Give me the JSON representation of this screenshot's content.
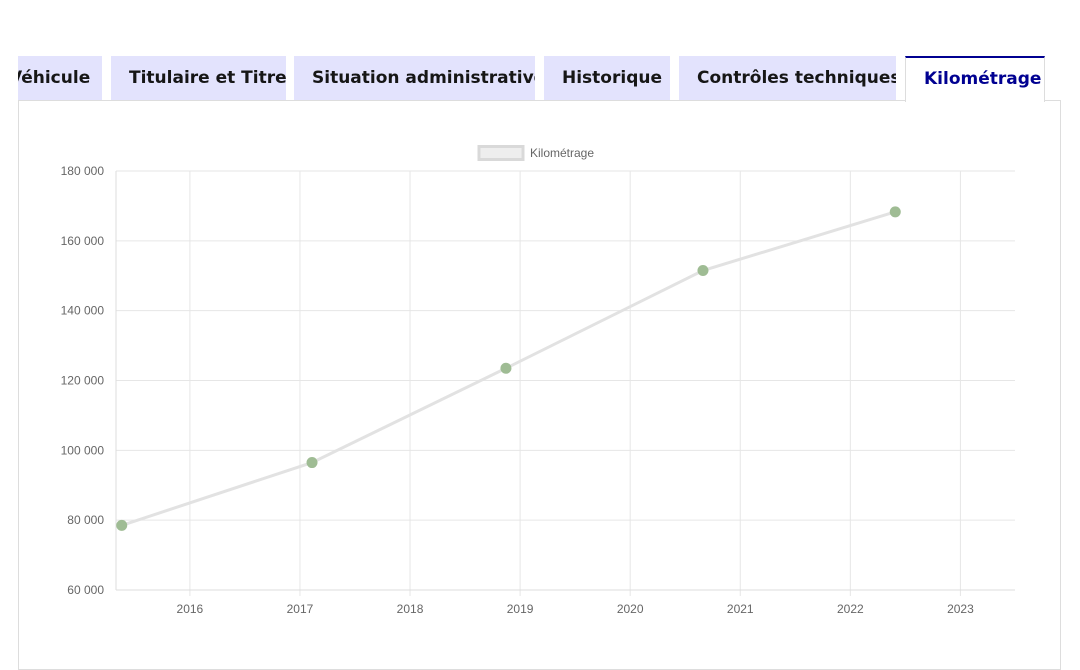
{
  "tabs": [
    {
      "label": "Véhicule",
      "active": false
    },
    {
      "label": "Titulaire et Titre",
      "active": false
    },
    {
      "label": "Situation administrative",
      "active": false
    },
    {
      "label": "Historique",
      "active": false
    },
    {
      "label": "Contrôles techniques",
      "active": false
    },
    {
      "label": "Kilométrage",
      "active": true
    }
  ],
  "colors": {
    "tab_background": "#e3e3fd",
    "active_tab_accent": "#000091",
    "line": "#e2e2e2",
    "point": "#9fbc94"
  },
  "chart_data": {
    "type": "line",
    "title": "",
    "xlabel": "",
    "ylabel": "",
    "legend": {
      "position": "top",
      "label": "Kilométrage"
    },
    "grid": true,
    "x_ticks": [
      "2016",
      "2017",
      "2018",
      "2019",
      "2020",
      "2021",
      "2022",
      "2023"
    ],
    "y_ticks": [
      "60 000",
      "80 000",
      "100 000",
      "120 000",
      "140 000",
      "160 000",
      "180 000"
    ],
    "xlim": [
      "2015-05",
      "2023-07"
    ],
    "ylim": [
      60000,
      180000
    ],
    "series": [
      {
        "name": "Kilométrage",
        "points": [
          {
            "x": "2015-05-20",
            "y": 78500
          },
          {
            "x": "2017-02-10",
            "y": 96500
          },
          {
            "x": "2018-11-15",
            "y": 123500
          },
          {
            "x": "2020-08-30",
            "y": 151500
          },
          {
            "x": "2022-05-30",
            "y": 168300
          }
        ]
      }
    ]
  }
}
